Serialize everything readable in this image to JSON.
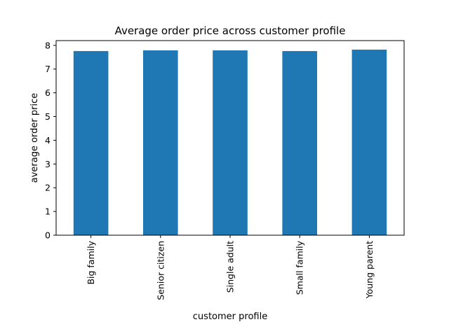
{
  "chart_data": {
    "type": "bar",
    "title": "Average order price across customer profile",
    "xlabel": "customer profile",
    "ylabel": "average order price",
    "categories": [
      "Big family",
      "Senior citizen",
      "Single adult",
      "Small family",
      "Young parent"
    ],
    "values": [
      7.76,
      7.79,
      7.79,
      7.76,
      7.82
    ],
    "ylim": [
      0,
      8.2
    ],
    "yticks": [
      0,
      1,
      2,
      3,
      4,
      5,
      6,
      7,
      8
    ],
    "bar_color": "#1f77b4",
    "grid": false,
    "legend": "none"
  }
}
